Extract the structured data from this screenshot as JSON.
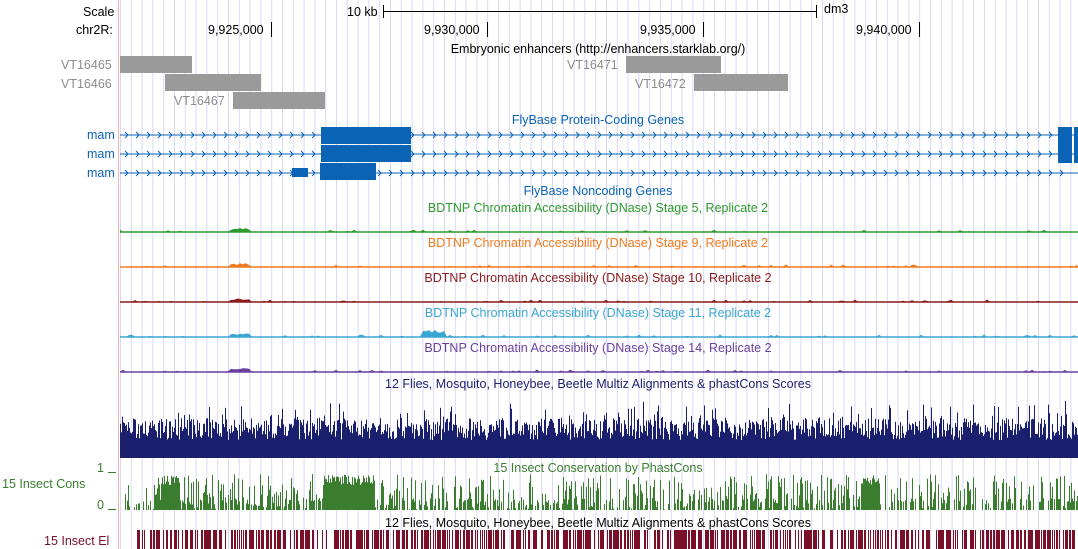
{
  "ruler": {
    "scale_label": "Scale",
    "chrom_label": "chr2R:",
    "scale_bar_text": "10 kb",
    "assembly": "dm3",
    "positions": [
      "9,925,000",
      "9,930,000",
      "9,935,000",
      "9,940,000"
    ]
  },
  "enhancers": {
    "title": "Embryonic enhancers (http://enhancers.starklab.org/)",
    "items": [
      "VT16465",
      "VT16466",
      "VT16467",
      "VT16471",
      "VT16472"
    ]
  },
  "genes": {
    "title": "FlyBase Protein-Coding Genes",
    "rows": [
      "mam",
      "mam",
      "mam"
    ]
  },
  "noncoding": {
    "title": "FlyBase Noncoding Genes"
  },
  "dnase": [
    {
      "title": "BDTNP Chromatin Accessibility (DNase) Stage 5, Replicate 2",
      "color": "#2e9a2e"
    },
    {
      "title": "BDTNP Chromatin Accessibility (DNase) Stage 9, Replicate 2",
      "color": "#f07a1e"
    },
    {
      "title": "BDTNP Chromatin Accessibility (DNase) Stage 10, Replicate 2",
      "color": "#8b1a1a"
    },
    {
      "title": "BDTNP Chromatin Accessibility (DNase) Stage 11, Replicate 2",
      "color": "#3aa6d4"
    },
    {
      "title": "BDTNP Chromatin Accessibility (DNase) Stage 14, Replicate 2",
      "color": "#6a3fa0"
    }
  ],
  "multiz": {
    "title": "12 Flies, Mosquito, Honeybee, Beetle Multiz Alignments & phastCons Scores",
    "color": "#1a1f6e"
  },
  "cons": {
    "title": "15 Insect Conservation by PhastCons",
    "side_label": "15 Insect Cons",
    "axis_top": "1",
    "axis_bottom": "0",
    "color": "#3b7d2e"
  },
  "elements": {
    "title": "12 Flies, Mosquito, Honeybee, Beetle Multiz Alignments & phastCons Scores",
    "side_label": "15 Insect El",
    "color": "#7a0f28"
  }
}
